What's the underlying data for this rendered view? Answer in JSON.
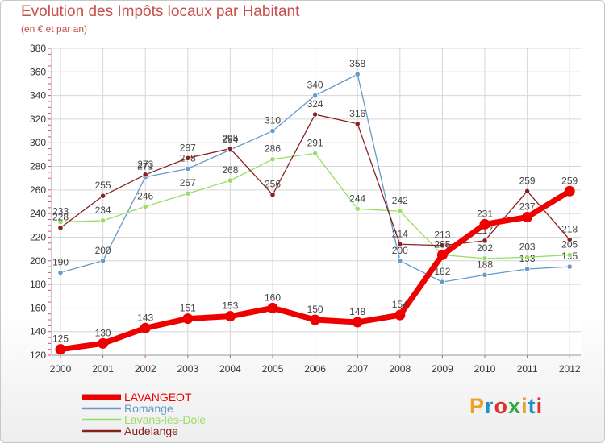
{
  "title": "Evolution des Impôts locaux par Habitant",
  "subtitle": "(en € et par an)",
  "logo": {
    "text": "Proxiti",
    "colors": [
      "#f0a020",
      "#1e90d0",
      "#e03030",
      "#2ea84a",
      "#f0a020",
      "#1e90d0",
      "#e03030"
    ]
  },
  "chart_data": {
    "type": "line",
    "title": "Evolution des Impôts locaux par Habitant",
    "subtitle": "(en € et par an)",
    "xlabel": "",
    "ylabel": "",
    "ylim": [
      120,
      380
    ],
    "y_ticks": [
      120,
      140,
      160,
      180,
      200,
      220,
      240,
      260,
      280,
      300,
      320,
      340,
      360,
      380
    ],
    "grid": true,
    "legend_position": "bottom-left",
    "categories": [
      "2000",
      "2001",
      "2002",
      "2003",
      "2004",
      "2005",
      "2006",
      "2007",
      "2008",
      "2009",
      "2010",
      "2011",
      "2012"
    ],
    "series": [
      {
        "name": "LAVANGEOT",
        "color": "#ee0000",
        "emphasis": true,
        "values": [
          125,
          130,
          143,
          151,
          153,
          160,
          150,
          148,
          154,
          205,
          231,
          237,
          259
        ],
        "labels": [
          "125",
          "130",
          "143",
          "151",
          "153",
          "160",
          "150",
          "148",
          "154",
          "205",
          "231",
          "237",
          "259"
        ]
      },
      {
        "name": "Romange",
        "color": "#6699cc",
        "values": [
          190,
          200,
          271,
          278,
          294,
          310,
          340,
          358,
          200,
          182,
          188,
          193,
          195
        ],
        "labels": [
          "190",
          "200",
          "271",
          "278",
          "294",
          "310",
          "340",
          "358",
          "200",
          "182",
          "188",
          "193",
          "195"
        ]
      },
      {
        "name": "Lavans-lès-Dole",
        "color": "#99dd66",
        "values": [
          233,
          234,
          246,
          257,
          268,
          286,
          291,
          244,
          242,
          205,
          202,
          203,
          205
        ],
        "labels": [
          "233",
          "234",
          "246",
          "257",
          "268",
          "286",
          "291",
          "244",
          "242",
          "205",
          "202",
          "203",
          "205"
        ]
      },
      {
        "name": "Audelange",
        "color": "#882222",
        "values": [
          228,
          255,
          273,
          287,
          295,
          256,
          324,
          316,
          214,
          213,
          217,
          259,
          218
        ],
        "labels": [
          "228",
          "255",
          "273",
          "287",
          "295",
          "256",
          "324",
          "316",
          "214",
          "213",
          "217",
          "259",
          "218"
        ]
      }
    ]
  }
}
